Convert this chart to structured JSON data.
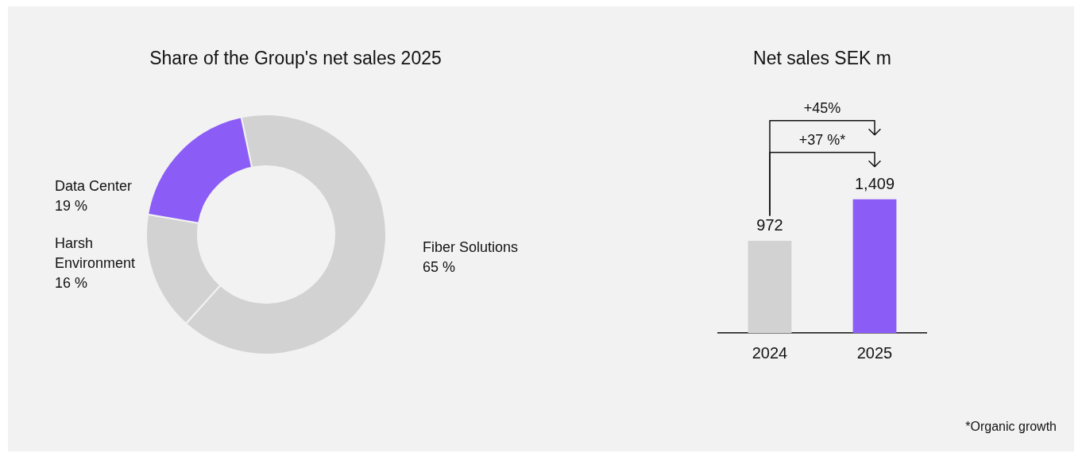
{
  "chart_data": [
    {
      "type": "donut",
      "title": "Share of the Group's net sales 2025",
      "categories": [
        "Fiber Solutions",
        "Harsh Environment",
        "Data Center"
      ],
      "values": [
        65,
        16,
        19
      ],
      "colors": [
        "#d2d2d2",
        "#d2d2d2",
        "#8b5cf6"
      ],
      "value_labels": [
        "65 %",
        "16 %",
        "19 %"
      ],
      "legend": false
    },
    {
      "type": "bar",
      "title": "Net sales SEK m",
      "categories": [
        "2024",
        "2025"
      ],
      "values": [
        972,
        1409
      ],
      "colors": [
        "#d2d2d2",
        "#8b5cf6"
      ],
      "value_labels": [
        "972",
        "1,409"
      ],
      "legend": false,
      "annotations": [
        "+45%",
        "+37 %*",
        "*Organic growth"
      ]
    }
  ]
}
